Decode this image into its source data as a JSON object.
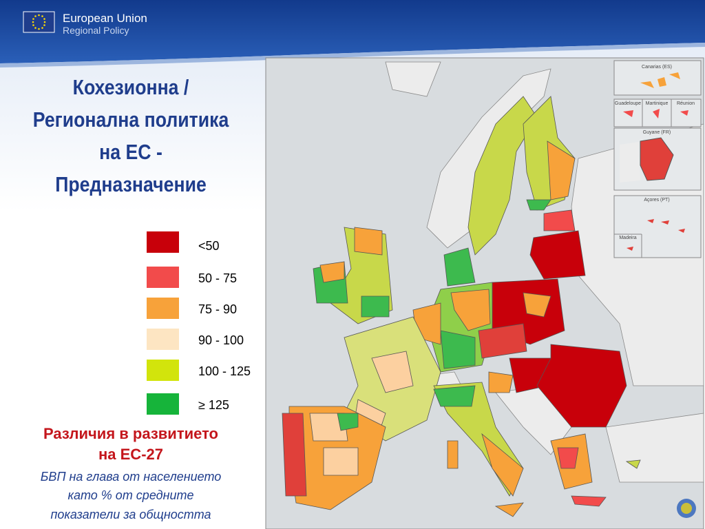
{
  "header": {
    "org_name": "European Union",
    "org_sub": "Regional Policy"
  },
  "title": {
    "lines": [
      "Кохезионна /",
      "Регионална политика",
      "на ЕС -",
      "Предназначение"
    ]
  },
  "legend": {
    "items": [
      {
        "label": "<50",
        "color": "#c8000a"
      },
      {
        "label": "50 - 75",
        "color": "#f24b4b"
      },
      {
        "label": "75 - 90",
        "color": "#f7a23a"
      },
      {
        "label": "90 - 100",
        "color": "#fde5c2"
      },
      {
        "label": "100 - 125",
        "color": "#d2e40c"
      },
      {
        "label": "≥ 125",
        "color": "#16b43a"
      }
    ]
  },
  "subtitle": {
    "lines": [
      "Различия в развитието",
      "на ЕС-27"
    ]
  },
  "caption": {
    "lines": [
      "БВП на глава от населението",
      "като % от средните",
      "показатели за общността"
    ]
  },
  "map": {
    "insets": [
      "Canarias (ES)",
      "Guadeloupe",
      "Martinique",
      "Réunion",
      "Guyane (FR)",
      "Açores (PT)",
      "Madeira"
    ]
  }
}
